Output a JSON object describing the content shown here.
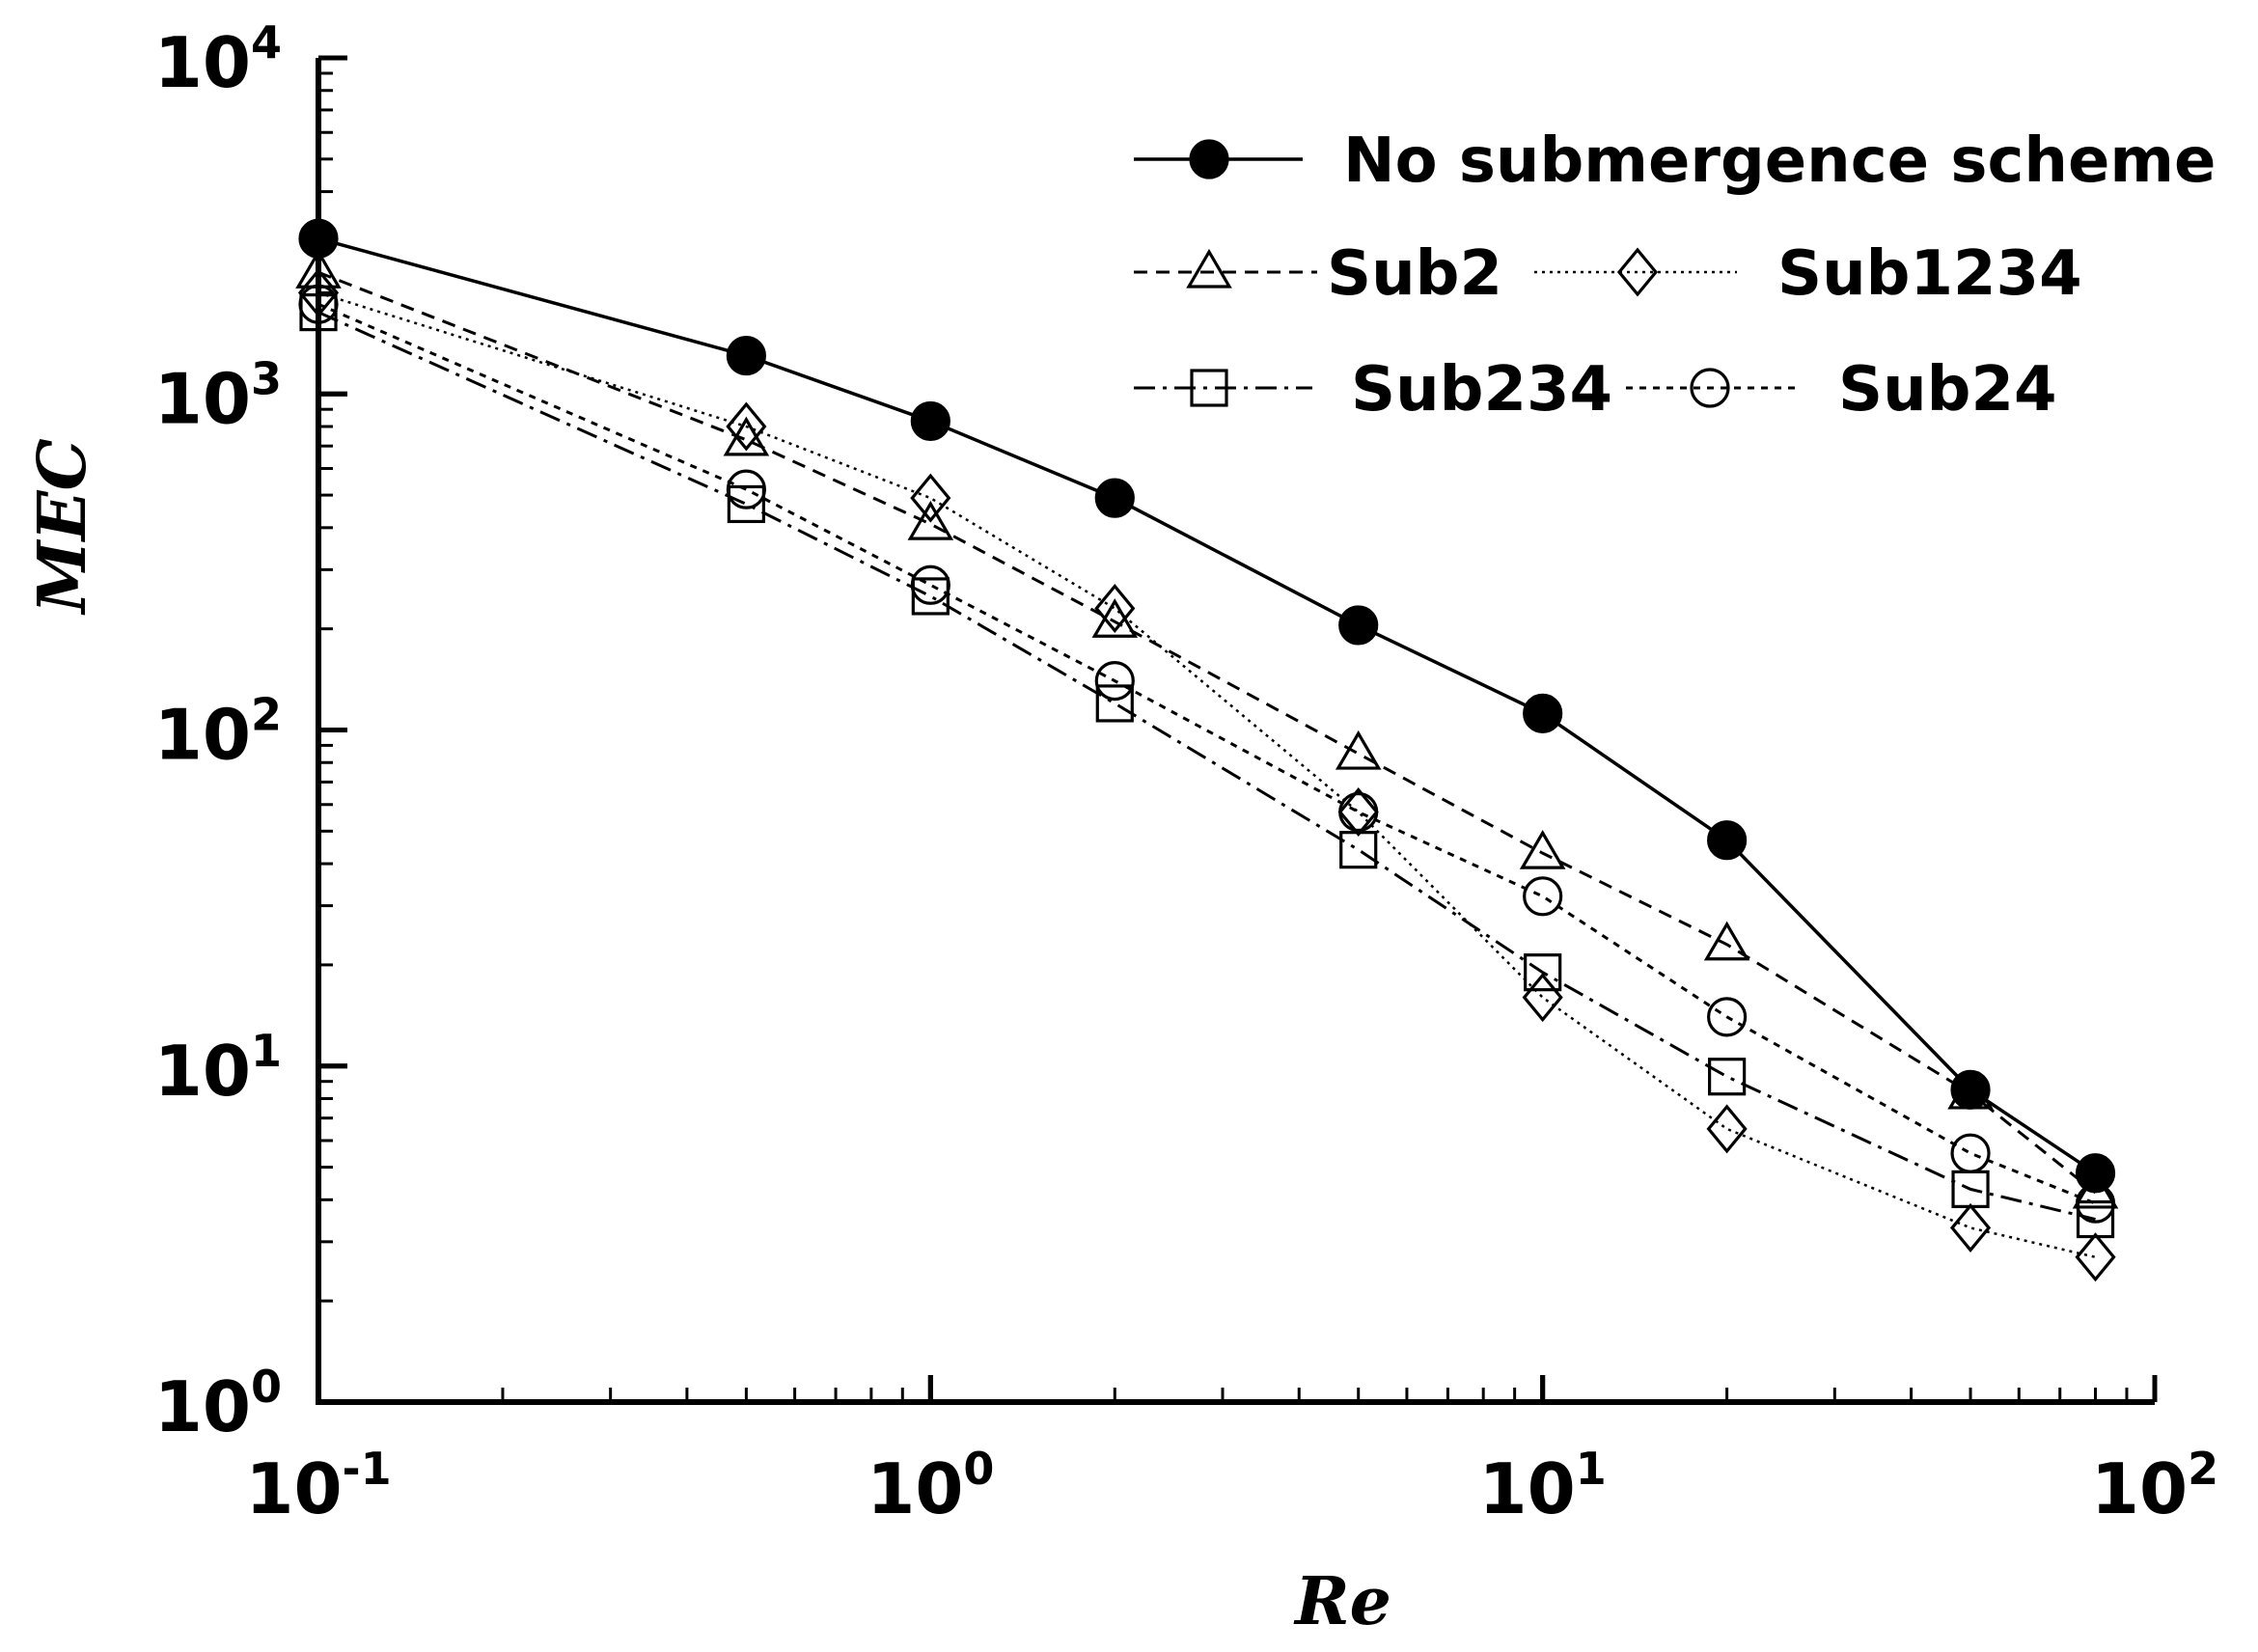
{
  "chart_data": {
    "type": "line",
    "title": "",
    "xlabel": "Re",
    "ylabel": "MEC",
    "xscale": "log",
    "yscale": "log",
    "xlim": [
      0.1,
      100
    ],
    "ylim": [
      1,
      10000
    ],
    "x_ticks": [
      {
        "value": 0.1,
        "base": "10",
        "exp": "-1"
      },
      {
        "value": 1,
        "base": "10",
        "exp": "0"
      },
      {
        "value": 10,
        "base": "10",
        "exp": "1"
      },
      {
        "value": 100,
        "base": "10",
        "exp": "2"
      }
    ],
    "y_ticks": [
      {
        "value": 1,
        "base": "10",
        "exp": "0"
      },
      {
        "value": 10,
        "base": "10",
        "exp": "1"
      },
      {
        "value": 100,
        "base": "10",
        "exp": "2"
      },
      {
        "value": 1000,
        "base": "10",
        "exp": "3"
      },
      {
        "value": 10000,
        "base": "10",
        "exp": "4"
      }
    ],
    "x": [
      0.1,
      0.5,
      1,
      2,
      5,
      10,
      20,
      50,
      80
    ],
    "legend_position": "top-right",
    "series": [
      {
        "name": "No submergence scheme",
        "marker": "filled-circle",
        "line": "solid",
        "values": [
          2900,
          1300,
          830,
          490,
          205,
          112,
          47,
          8.5,
          4.8
        ]
      },
      {
        "name": "Sub2",
        "marker": "triangle",
        "line": "dashed",
        "values": [
          2300,
          730,
          410,
          210,
          85,
          43,
          23,
          8.3,
          4.2
        ]
      },
      {
        "name": "Sub1234",
        "marker": "diamond",
        "line": "dotted",
        "values": [
          2000,
          800,
          490,
          230,
          57,
          16,
          6.5,
          3.3,
          2.7
        ]
      },
      {
        "name": "Sub234",
        "marker": "square",
        "line": "dash-dot",
        "values": [
          1750,
          470,
          250,
          120,
          44,
          19,
          9.3,
          4.3,
          3.5
        ]
      },
      {
        "name": "Sub24",
        "marker": "circle",
        "line": "short-dash",
        "values": [
          1850,
          520,
          270,
          140,
          57,
          32,
          14,
          5.5,
          3.9
        ]
      }
    ]
  }
}
